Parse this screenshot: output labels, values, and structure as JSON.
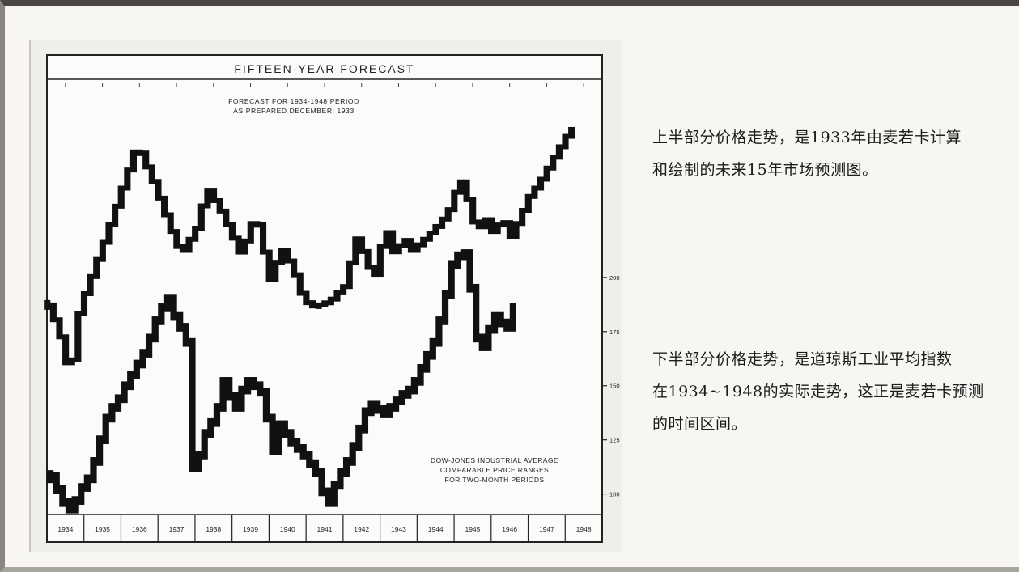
{
  "chart_data": {
    "type": "line",
    "title": "FIFTEEN-YEAR  FORECAST",
    "forecast_note": [
      "FORECAST  FOR  1934-1948  PERIOD",
      "AS  PREPARED  DECEMBER,  1933"
    ],
    "dow_note": [
      "DOW-JONES  INDUSTRIAL  AVERAGE",
      "COMPARABLE  PRICE  RANGES",
      "FOR  TWO-MONTH  PERIODS"
    ],
    "x_categories": [
      "1934",
      "1935",
      "1936",
      "1937",
      "1938",
      "1939",
      "1940",
      "1941",
      "1942",
      "1943",
      "1944",
      "1945",
      "1946",
      "1947",
      "1948"
    ],
    "y_ticks": [
      "200",
      "175",
      "150",
      "125",
      "100"
    ],
    "ylim": [
      92,
      222
    ],
    "forecast_profile": [
      [
        1934.0,
        320
      ],
      [
        1934.3,
        352
      ],
      [
        1934.6,
        408
      ],
      [
        1934.85,
        325
      ],
      [
        1935.5,
        245
      ],
      [
        1936.0,
        180
      ],
      [
        1936.4,
        128
      ],
      [
        1936.8,
        168
      ],
      [
        1937.4,
        240
      ],
      [
        1937.6,
        260
      ],
      [
        1938.0,
        228
      ],
      [
        1938.3,
        180
      ],
      [
        1938.7,
        210
      ],
      [
        1939.2,
        260
      ],
      [
        1939.6,
        210
      ],
      [
        1940.0,
        290
      ],
      [
        1940.3,
        252
      ],
      [
        1940.6,
        275
      ],
      [
        1940.9,
        315
      ],
      [
        1941.2,
        322
      ],
      [
        1941.6,
        316
      ],
      [
        1942.0,
        298
      ],
      [
        1942.35,
        238
      ],
      [
        1942.55,
        262
      ],
      [
        1942.8,
        290
      ],
      [
        1943.0,
        250
      ],
      [
        1943.1,
        210
      ],
      [
        1943.2,
        245
      ],
      [
        1943.4,
        262
      ],
      [
        1943.6,
        236
      ],
      [
        1943.8,
        256
      ],
      [
        1944.2,
        240
      ],
      [
        1944.5,
        226
      ],
      [
        1944.8,
        210
      ],
      [
        1945.0,
        185
      ],
      [
        1945.2,
        170
      ],
      [
        1945.45,
        215
      ],
      [
        1945.6,
        232
      ],
      [
        1945.8,
        215
      ],
      [
        1946.0,
        232
      ],
      [
        1946.3,
        218
      ],
      [
        1946.5,
        238
      ],
      [
        1946.8,
        210
      ],
      [
        1947.0,
        190
      ],
      [
        1947.3,
        172
      ],
      [
        1947.6,
        148
      ],
      [
        1948.0,
        118
      ],
      [
        1948.2,
        108
      ]
    ],
    "series": [
      {
        "name": "",
        "x_start": 1934.0,
        "step_years": 0.1667,
        "values": [
          108,
          102,
          96,
          93,
          97,
          103,
          107,
          115,
          125,
          135,
          140,
          144,
          150,
          155,
          160,
          165,
          172,
          180,
          186,
          190,
          182,
          177,
          170,
          112,
          118,
          128,
          133,
          140,
          152,
          145,
          140,
          148,
          152,
          150,
          147,
          135,
          120,
          132,
          128,
          124,
          121,
          118,
          114,
          110,
          101,
          96,
          104,
          110,
          115,
          122,
          130,
          138,
          141,
          139,
          137,
          140,
          143,
          146,
          148,
          152,
          158,
          164,
          170,
          180,
          192,
          206,
          210,
          211,
          195,
          172,
          168,
          176,
          182,
          179,
          177,
          186
        ]
      }
    ]
  },
  "captions": {
    "top": [
      "上半部分价格走势，是1933年由麦若卡计算",
      "和绘制的未来15年市场预测图。"
    ],
    "bottom": [
      "下半部分价格走势，是道琼斯工业平均指数",
      "在1934~1948的实际走势，这正是麦若卡预测",
      "的时间区间。"
    ]
  }
}
